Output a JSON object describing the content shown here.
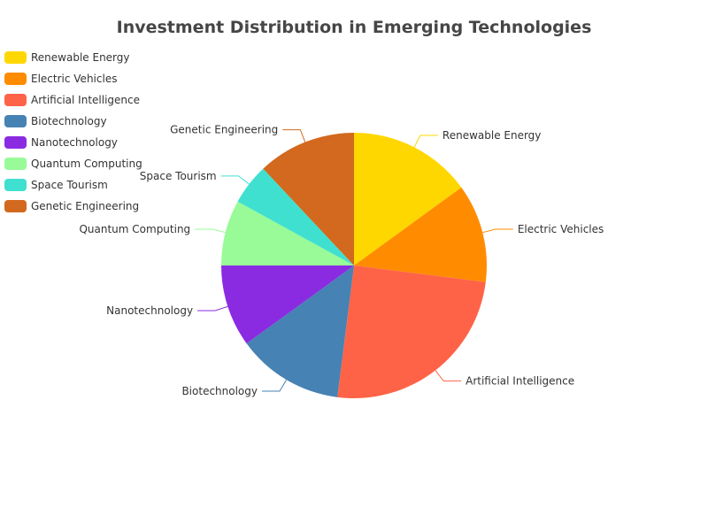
{
  "chart_data": {
    "type": "pie",
    "title": "Investment Distribution in Emerging Technologies",
    "legend_position": "top-left",
    "categories": [
      "Renewable Energy",
      "Electric Vehicles",
      "Artificial Intelligence",
      "Biotechnology",
      "Nanotechnology",
      "Quantum Computing",
      "Space Tourism",
      "Genetic Engineering"
    ],
    "values": [
      15,
      12,
      25,
      13,
      10,
      8,
      5,
      12
    ],
    "colors": [
      "#FFD700",
      "#FF8C00",
      "#FF6347",
      "#4682B4",
      "#8A2BE2",
      "#98FB98",
      "#40E0D0",
      "#D2691E"
    ]
  }
}
